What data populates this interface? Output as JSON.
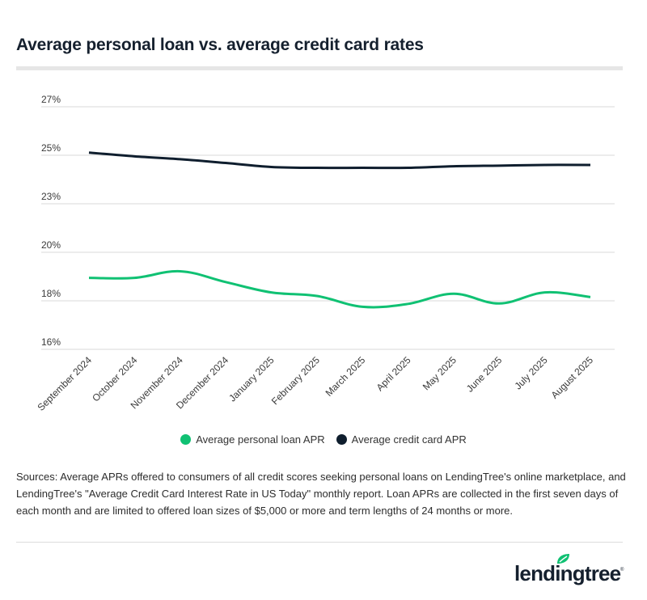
{
  "header": {
    "title": "Average personal loan vs. average credit card rates"
  },
  "colors": {
    "personal_loan": "#10c173",
    "credit_card": "#0f1e2e",
    "grid": "#d9d9d9"
  },
  "chart_data": {
    "type": "line",
    "title": "Average personal loan vs. average credit card rates",
    "xlabel": "",
    "ylabel": "",
    "categories": [
      "September 2024",
      "October 2024",
      "November 2024",
      "December 2024",
      "January 2025",
      "February 2025",
      "March 2025",
      "April 2025",
      "May 2025",
      "June 2025",
      "July 2025",
      "August 2025"
    ],
    "series": [
      {
        "name": "Average personal loan APR",
        "color": "#10c173",
        "values": [
          19.24,
          19.24,
          19.54,
          19.05,
          18.58,
          18.42,
          17.93,
          18.06,
          18.52,
          18.08,
          18.58,
          18.37
        ]
      },
      {
        "name": "Average credit card APR",
        "color": "#0f1e2e",
        "values": [
          24.92,
          24.75,
          24.62,
          24.45,
          24.27,
          24.23,
          24.23,
          24.23,
          24.3,
          24.33,
          24.36,
          24.36
        ]
      }
    ],
    "ylim": [
      16,
      27
    ],
    "yticks": [
      16,
      18.2,
      20.4,
      22.6,
      24.8,
      27
    ],
    "ytick_labels": [
      "16%",
      "18%",
      "20%",
      "23%",
      "25%",
      "27%"
    ],
    "grid": true,
    "legend_position": "bottom-center"
  },
  "legend": {
    "items": [
      {
        "label": "Average personal loan APR"
      },
      {
        "label": "Average credit card APR"
      }
    ]
  },
  "footer": {
    "sources": "Sources: Average APRs offered to consumers of all credit scores seeking personal loans on LendingTree's online marketplace, and LendingTree's \"Average Credit Card Interest Rate in US Today\" monthly report. Loan APRs are collected in the first seven days of each month and are limited to offered loan sizes of $5,000 or more and term lengths of 24 months or more.",
    "logo_text": "lendingtree",
    "logo_mark": "®"
  }
}
